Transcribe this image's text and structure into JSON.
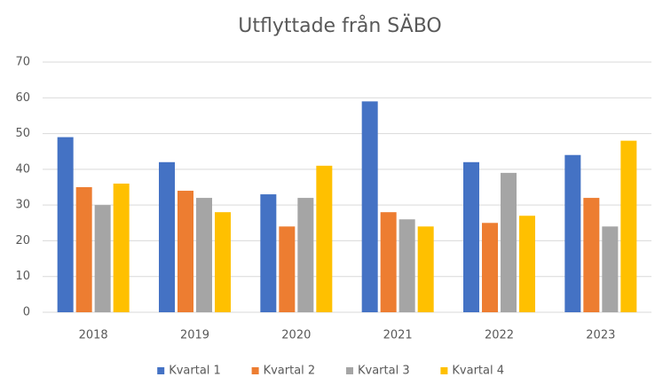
{
  "chart_data": {
    "type": "bar",
    "title": "Utflyttade från SÄBO",
    "categories": [
      "2018",
      "2019",
      "2020",
      "2021",
      "2022",
      "2023"
    ],
    "series": [
      {
        "name": "Kvartal 1",
        "color": "#4472c4",
        "values": [
          49,
          42,
          33,
          59,
          42,
          44
        ]
      },
      {
        "name": "Kvartal 2",
        "color": "#ed7d31",
        "values": [
          35,
          34,
          24,
          28,
          25,
          32
        ]
      },
      {
        "name": "Kvartal 3",
        "color": "#a5a5a5",
        "values": [
          30,
          32,
          32,
          26,
          39,
          24
        ]
      },
      {
        "name": "Kvartal 4",
        "color": "#ffc000",
        "values": [
          36,
          28,
          41,
          24,
          27,
          48
        ]
      }
    ],
    "ylim": [
      0,
      70
    ],
    "yticks": [
      0,
      10,
      20,
      30,
      40,
      50,
      60,
      70
    ],
    "grid": true,
    "legend": "bottom"
  }
}
